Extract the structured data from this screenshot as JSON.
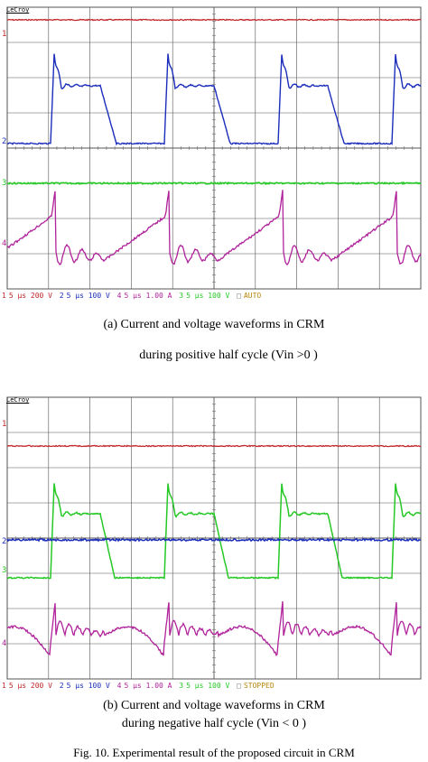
{
  "colors": {
    "ch1": "#c0262b",
    "ch2": "#1b2dbb",
    "ch3": "#25c825",
    "ch4": "#b0229a",
    "grid": "#555555",
    "auto": "#b8860b"
  },
  "scope_a": {
    "brand": "LeCroy",
    "markers": [
      "1",
      "2",
      "3",
      "4"
    ],
    "status": {
      "ch1_num": "1",
      "ch1_settings": "5 μs 200 V",
      "ch2_num": "2",
      "ch2_settings": "5 μs 100 V",
      "ch4_num": "4",
      "ch4_settings": "5 μs 1.00 A",
      "ch3_num": "3",
      "ch3_settings": "5 μs 100 V",
      "box": "□",
      "mode": "AUTO"
    },
    "caption_line1": "(a)    Current and voltage waveforms in CRM",
    "caption_line2": "during positive half cycle (Vin >0 )"
  },
  "scope_b": {
    "brand": "LeCroy",
    "markers": [
      "1",
      "2",
      "3",
      "4"
    ],
    "status": {
      "ch1_num": "1",
      "ch1_settings": "5 μs 200 V",
      "ch2_num": "2",
      "ch2_settings": "5 μs 100 V",
      "ch4_num": "4",
      "ch4_settings": "5 μs 1.00 A",
      "ch3_num": "3",
      "ch3_settings": "5 μs 100 V",
      "box": "□",
      "mode": "STOPPED"
    },
    "caption_line1": "(b)    Current and voltage waveforms in CRM",
    "caption_line2": "during negative half cycle (Vin < 0 )"
  },
  "figure_caption": "Fig. 10. Experimental result of the proposed circuit in CRM"
}
